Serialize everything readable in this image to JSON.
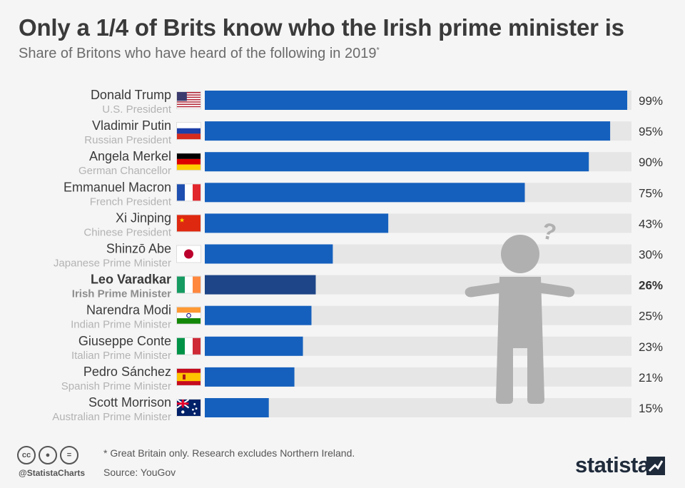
{
  "title": "Only a 1/4 of Brits know who the Irish prime minister is",
  "subtitle": "Share of Britons who have heard of the following in 2019",
  "subtitle_mark": "*",
  "chart_data": {
    "type": "bar",
    "orientation": "horizontal",
    "value_suffix": "%",
    "xlim": [
      0,
      100
    ],
    "categories": [
      "Donald Trump",
      "Vladimir Putin",
      "Angela Merkel",
      "Emmanuel Macron",
      "Xi Jinping",
      "Shinzō Abe",
      "Leo Varadkar",
      "Narendra Modi",
      "Giuseppe Conte",
      "Pedro Sánchez",
      "Scott Morrison"
    ],
    "roles": [
      "U.S. President",
      "Russian President",
      "German Chancellor",
      "French President",
      "Chinese President",
      "Japanese Prime Minister",
      "Irish Prime Minister",
      "Indian Prime Minister",
      "Italian Prime Minister",
      "Spanish Prime Minister",
      "Australian Prime Minister"
    ],
    "flags": [
      "us-flag-icon",
      "russia-flag-icon",
      "germany-flag-icon",
      "france-flag-icon",
      "china-flag-icon",
      "japan-flag-icon",
      "ireland-flag-icon",
      "india-flag-icon",
      "italy-flag-icon",
      "spain-flag-icon",
      "australia-flag-icon"
    ],
    "values": [
      99,
      95,
      90,
      75,
      43,
      30,
      26,
      25,
      23,
      21,
      15
    ],
    "highlight_index": 6,
    "colors": {
      "bar": "#1560bd",
      "highlight_bar": "#1d4587",
      "track": "#e6e6e6",
      "name_text": "#3a3a3a",
      "role_text": "#b3b3b3",
      "figure": "#b0b0b0"
    }
  },
  "footer": {
    "license_icons": [
      "cc",
      "by",
      "="
    ],
    "handle": "@StatistaCharts",
    "note": "* Great Britain only. Research excludes Northern Ireland.",
    "source": "Source: YouGov",
    "brand": "statista"
  }
}
